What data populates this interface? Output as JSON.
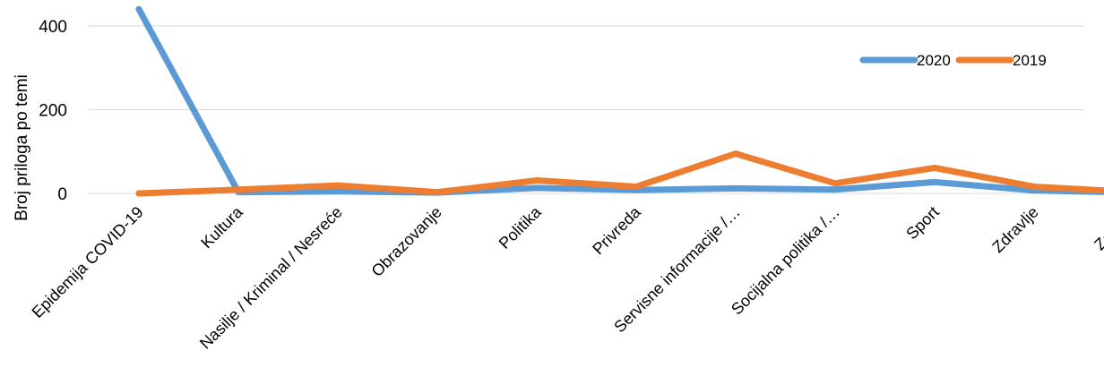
{
  "chart_data": {
    "type": "line",
    "title": "",
    "xlabel": "",
    "ylabel": "Broj priloga po temi",
    "ylim": [
      0,
      400
    ],
    "yticks": [
      0,
      200,
      400
    ],
    "grid": true,
    "legend_position": "top-right",
    "categories": [
      "Epidemija COVID-19",
      "Kultura",
      "Nasilje / Kriminal / Nesreće",
      "Obrazovanje",
      "Politika",
      "Privreda",
      "Servisne informacije /…",
      "Socijalna politika /…",
      "Sport",
      "Zdravlje",
      "Zabava"
    ],
    "series": [
      {
        "name": "2020",
        "color": "#5B9BD5",
        "values": [
          440,
          3,
          5,
          2,
          13,
          8,
          12,
          9,
          27,
          7,
          2
        ]
      },
      {
        "name": "2019",
        "color": "#ED7D31",
        "values": [
          0,
          9,
          19,
          3,
          31,
          16,
          95,
          24,
          61,
          16,
          3
        ]
      }
    ]
  }
}
